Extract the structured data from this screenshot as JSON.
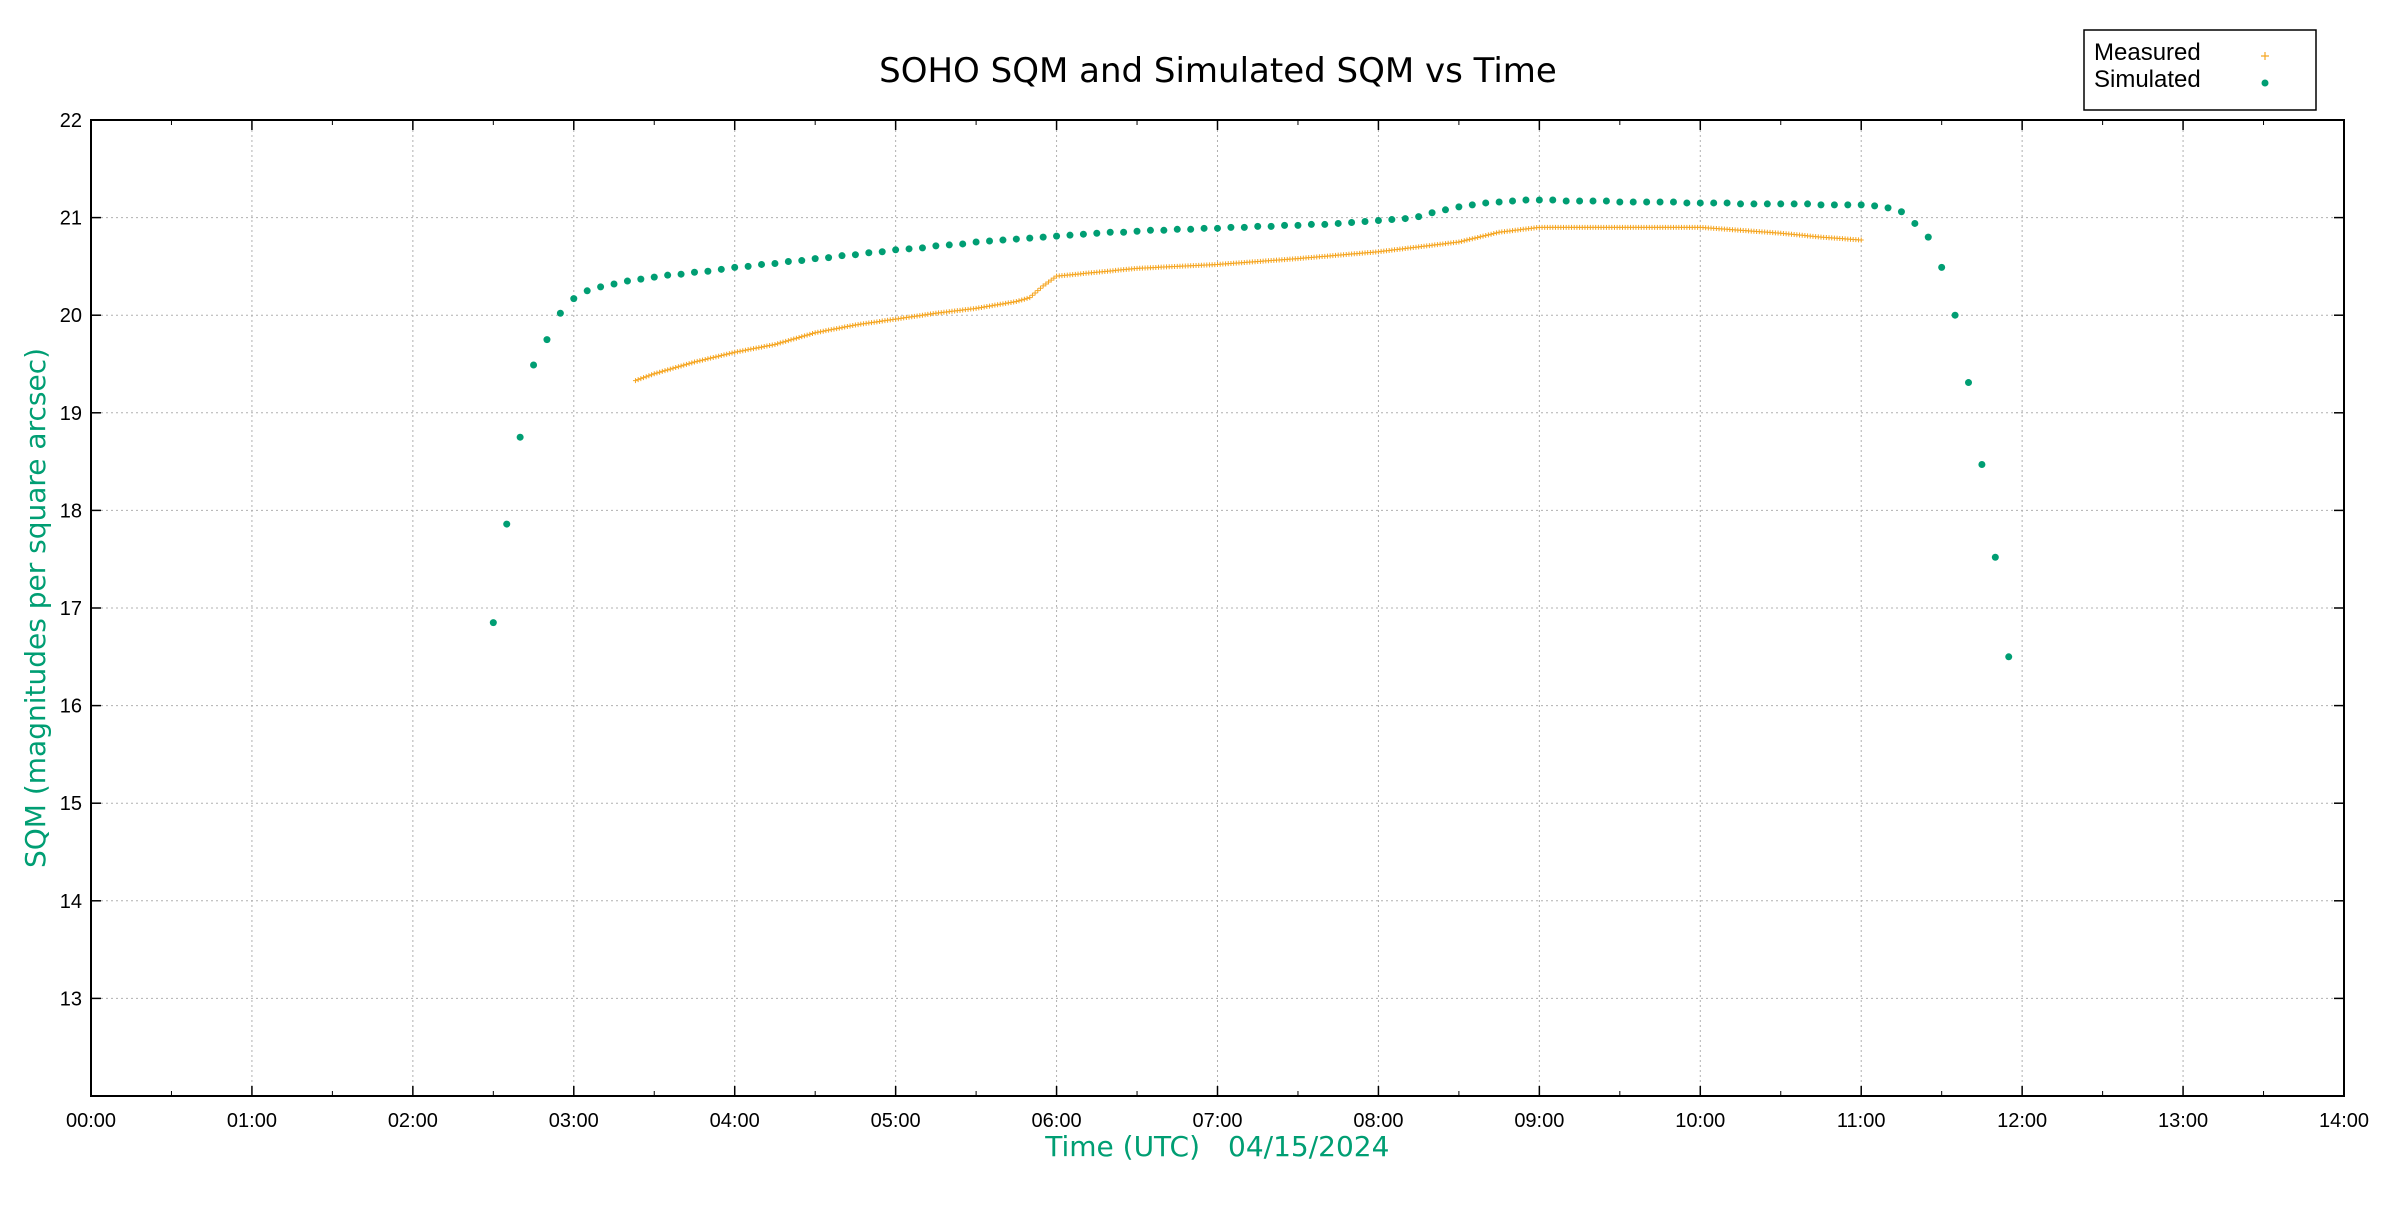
{
  "chart_data": {
    "type": "scatter",
    "title": "SOHO SQM and Simulated SQM vs Time",
    "xlabel": "Time (UTC)",
    "xlabel_date": "04/15/2024",
    "ylabel": "SQM (magnitudes per square arcsec)",
    "xlim": [
      "00:00",
      "14:00"
    ],
    "ylim": [
      12,
      22
    ],
    "x_ticks": [
      "00:00",
      "01:00",
      "02:00",
      "03:00",
      "04:00",
      "05:00",
      "06:00",
      "07:00",
      "08:00",
      "09:00",
      "10:00",
      "11:00",
      "12:00",
      "13:00",
      "14:00"
    ],
    "y_ticks": [
      13,
      14,
      15,
      16,
      17,
      18,
      19,
      20,
      21,
      22
    ],
    "grid": true,
    "legend_position": "top-right",
    "colors": {
      "measured": "#f5a623",
      "simulated": "#009e73",
      "axis_label": "#009e73",
      "grid": "#b0b0b0"
    },
    "series": [
      {
        "name": "Measured",
        "marker": "plus",
        "x_start": "03:23",
        "x_end": "11:00",
        "keypoints": [
          [
            "03:23",
            19.33
          ],
          [
            "03:30",
            19.4
          ],
          [
            "03:45",
            19.52
          ],
          [
            "04:00",
            19.62
          ],
          [
            "04:15",
            19.7
          ],
          [
            "04:30",
            19.82
          ],
          [
            "04:45",
            19.9
          ],
          [
            "05:00",
            19.96
          ],
          [
            "05:15",
            20.02
          ],
          [
            "05:30",
            20.07
          ],
          [
            "05:45",
            20.14
          ],
          [
            "05:50",
            20.18
          ],
          [
            "05:55",
            20.3
          ],
          [
            "06:00",
            20.4
          ],
          [
            "06:15",
            20.44
          ],
          [
            "06:30",
            20.48
          ],
          [
            "07:00",
            20.52
          ],
          [
            "07:30",
            20.58
          ],
          [
            "08:00",
            20.65
          ],
          [
            "08:30",
            20.75
          ],
          [
            "08:45",
            20.85
          ],
          [
            "09:00",
            20.9
          ],
          [
            "09:30",
            20.9
          ],
          [
            "10:00",
            20.9
          ],
          [
            "10:30",
            20.84
          ],
          [
            "10:45",
            20.8
          ],
          [
            "11:00",
            20.77
          ]
        ]
      },
      {
        "name": "Simulated",
        "marker": "dot",
        "points": [
          [
            "02:30",
            16.85
          ],
          [
            "02:35",
            17.86
          ],
          [
            "02:40",
            18.75
          ],
          [
            "02:45",
            19.49
          ],
          [
            "02:50",
            19.75
          ],
          [
            "02:55",
            20.02
          ],
          [
            "03:00",
            20.17
          ],
          [
            "03:05",
            20.25
          ],
          [
            "03:10",
            20.29
          ],
          [
            "03:15",
            20.32
          ],
          [
            "03:20",
            20.35
          ],
          [
            "03:25",
            20.37
          ],
          [
            "03:30",
            20.39
          ],
          [
            "03:35",
            20.41
          ],
          [
            "03:40",
            20.42
          ],
          [
            "03:45",
            20.44
          ],
          [
            "03:50",
            20.45
          ],
          [
            "03:55",
            20.47
          ],
          [
            "04:00",
            20.49
          ],
          [
            "04:05",
            20.5
          ],
          [
            "04:10",
            20.52
          ],
          [
            "04:15",
            20.53
          ],
          [
            "04:20",
            20.55
          ],
          [
            "04:25",
            20.56
          ],
          [
            "04:30",
            20.58
          ],
          [
            "04:35",
            20.59
          ],
          [
            "04:40",
            20.61
          ],
          [
            "04:45",
            20.62
          ],
          [
            "04:50",
            20.64
          ],
          [
            "04:55",
            20.65
          ],
          [
            "05:00",
            20.67
          ],
          [
            "05:05",
            20.68
          ],
          [
            "05:10",
            20.69
          ],
          [
            "05:15",
            20.71
          ],
          [
            "05:20",
            20.72
          ],
          [
            "05:25",
            20.73
          ],
          [
            "05:30",
            20.75
          ],
          [
            "05:35",
            20.76
          ],
          [
            "05:40",
            20.77
          ],
          [
            "05:45",
            20.78
          ],
          [
            "05:50",
            20.79
          ],
          [
            "05:55",
            20.8
          ],
          [
            "06:00",
            20.81
          ],
          [
            "06:05",
            20.82
          ],
          [
            "06:10",
            20.83
          ],
          [
            "06:15",
            20.84
          ],
          [
            "06:20",
            20.85
          ],
          [
            "06:25",
            20.85
          ],
          [
            "06:30",
            20.86
          ],
          [
            "06:35",
            20.87
          ],
          [
            "06:40",
            20.87
          ],
          [
            "06:45",
            20.88
          ],
          [
            "06:50",
            20.88
          ],
          [
            "06:55",
            20.89
          ],
          [
            "07:00",
            20.89
          ],
          [
            "07:05",
            20.9
          ],
          [
            "07:10",
            20.9
          ],
          [
            "07:15",
            20.91
          ],
          [
            "07:20",
            20.91
          ],
          [
            "07:25",
            20.92
          ],
          [
            "07:30",
            20.92
          ],
          [
            "07:35",
            20.93
          ],
          [
            "07:40",
            20.93
          ],
          [
            "07:45",
            20.94
          ],
          [
            "07:50",
            20.95
          ],
          [
            "07:55",
            20.96
          ],
          [
            "08:00",
            20.97
          ],
          [
            "08:05",
            20.98
          ],
          [
            "08:10",
            20.99
          ],
          [
            "08:15",
            21.01
          ],
          [
            "08:20",
            21.05
          ],
          [
            "08:25",
            21.08
          ],
          [
            "08:30",
            21.11
          ],
          [
            "08:35",
            21.13
          ],
          [
            "08:40",
            21.15
          ],
          [
            "08:45",
            21.16
          ],
          [
            "08:50",
            21.17
          ],
          [
            "08:55",
            21.18
          ],
          [
            "09:00",
            21.18
          ],
          [
            "09:05",
            21.18
          ],
          [
            "09:10",
            21.17
          ],
          [
            "09:15",
            21.17
          ],
          [
            "09:20",
            21.17
          ],
          [
            "09:25",
            21.17
          ],
          [
            "09:30",
            21.16
          ],
          [
            "09:35",
            21.16
          ],
          [
            "09:40",
            21.16
          ],
          [
            "09:45",
            21.16
          ],
          [
            "09:50",
            21.16
          ],
          [
            "09:55",
            21.15
          ],
          [
            "10:00",
            21.15
          ],
          [
            "10:05",
            21.15
          ],
          [
            "10:10",
            21.15
          ],
          [
            "10:15",
            21.14
          ],
          [
            "10:20",
            21.14
          ],
          [
            "10:25",
            21.14
          ],
          [
            "10:30",
            21.14
          ],
          [
            "10:35",
            21.14
          ],
          [
            "10:40",
            21.14
          ],
          [
            "10:45",
            21.13
          ],
          [
            "10:50",
            21.13
          ],
          [
            "10:55",
            21.13
          ],
          [
            "11:00",
            21.13
          ],
          [
            "11:05",
            21.12
          ],
          [
            "11:10",
            21.1
          ],
          [
            "11:15",
            21.06
          ],
          [
            "11:20",
            20.94
          ],
          [
            "11:25",
            20.8
          ],
          [
            "11:30",
            20.49
          ],
          [
            "11:35",
            20.0
          ],
          [
            "11:40",
            19.31
          ],
          [
            "11:45",
            18.47
          ],
          [
            "11:50",
            17.52
          ],
          [
            "11:55",
            16.5
          ]
        ]
      }
    ]
  }
}
